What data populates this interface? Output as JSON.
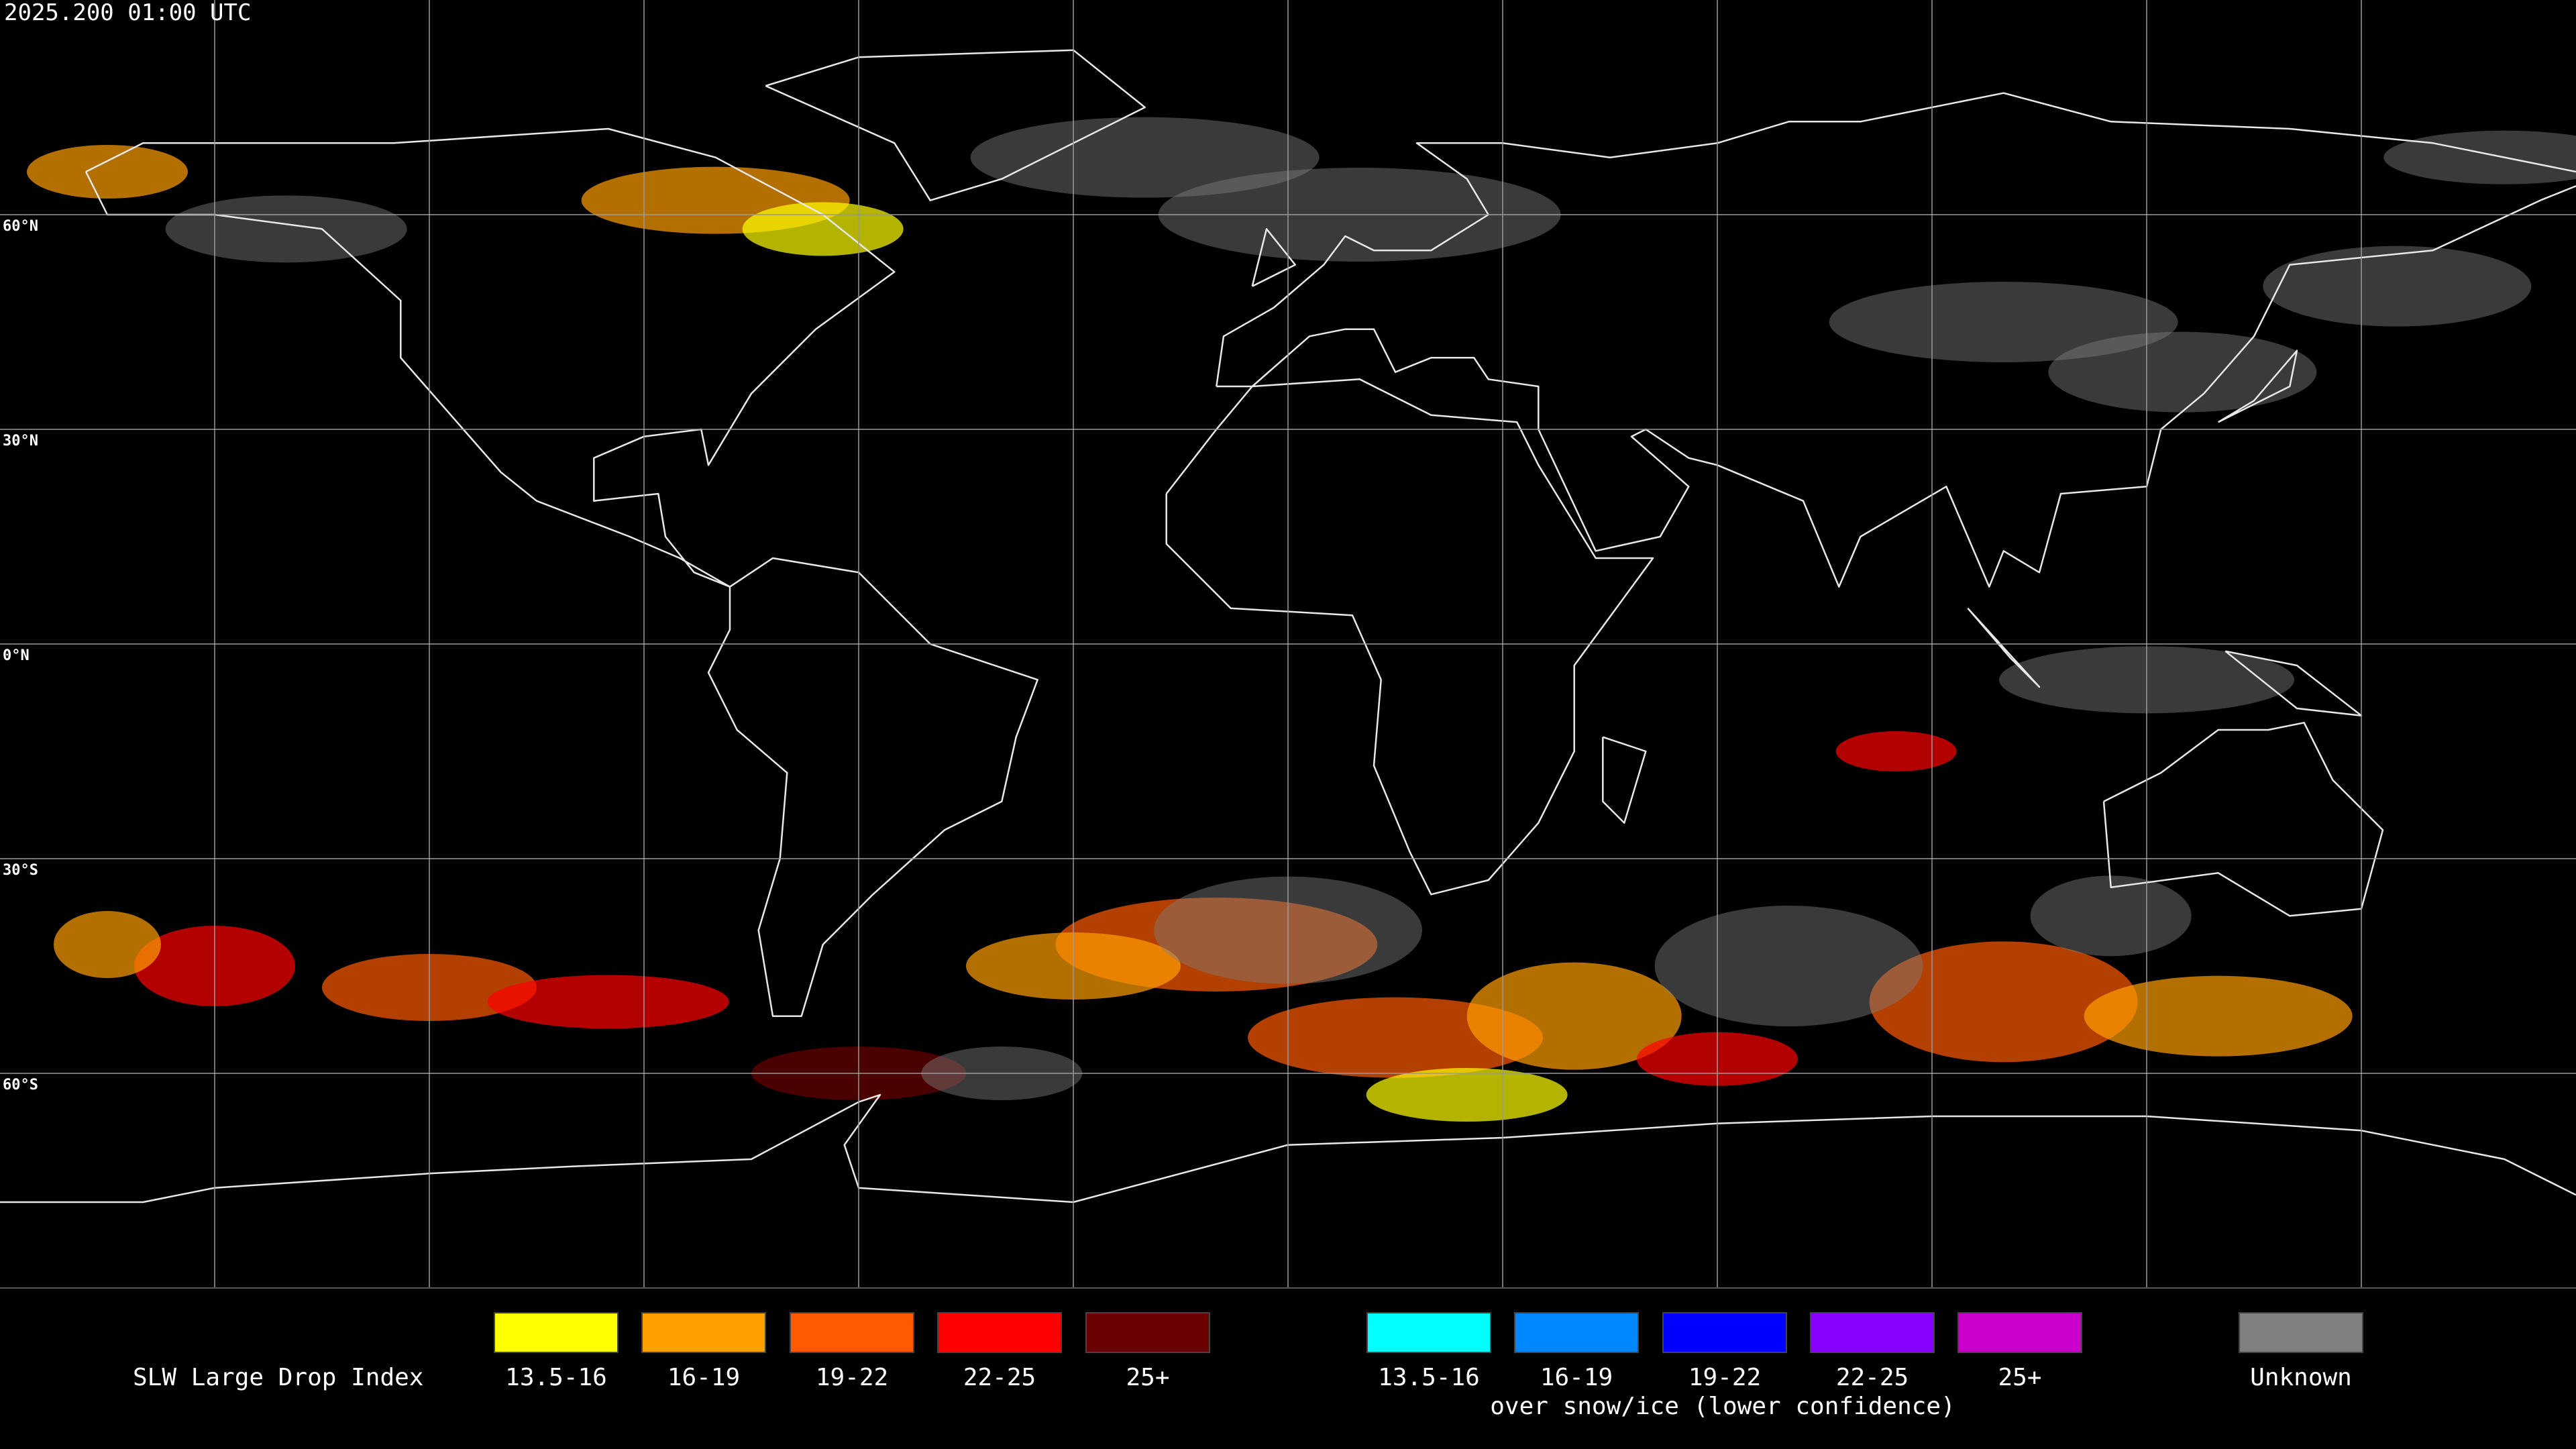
{
  "header": {
    "timestamp": "2025.200 01:00 UTC"
  },
  "map": {
    "lat_labels": [
      "60°N",
      "30°N",
      "0°N",
      "30°S",
      "60°S"
    ]
  },
  "legend": {
    "title": "SLW Large Drop Index",
    "items": [
      {
        "label": "13.5-16",
        "color": "#ffff00"
      },
      {
        "label": "16-19",
        "color": "#ffa000"
      },
      {
        "label": "19-22",
        "color": "#ff5a00"
      },
      {
        "label": "22-25",
        "color": "#ff0000"
      },
      {
        "label": "25+",
        "color": "#6a0000"
      }
    ],
    "snow_items": [
      {
        "label": "13.5-16",
        "color": "#00ffff"
      },
      {
        "label": "16-19",
        "color": "#0088ff"
      },
      {
        "label": "19-22",
        "color": "#0000ff"
      },
      {
        "label": "22-25",
        "color": "#8800ff"
      },
      {
        "label": "25+",
        "color": "#cc00cc"
      }
    ],
    "snow_caption": "over snow/ice (lower confidence)",
    "unknown": {
      "label": "Unknown",
      "color": "#808080"
    }
  }
}
